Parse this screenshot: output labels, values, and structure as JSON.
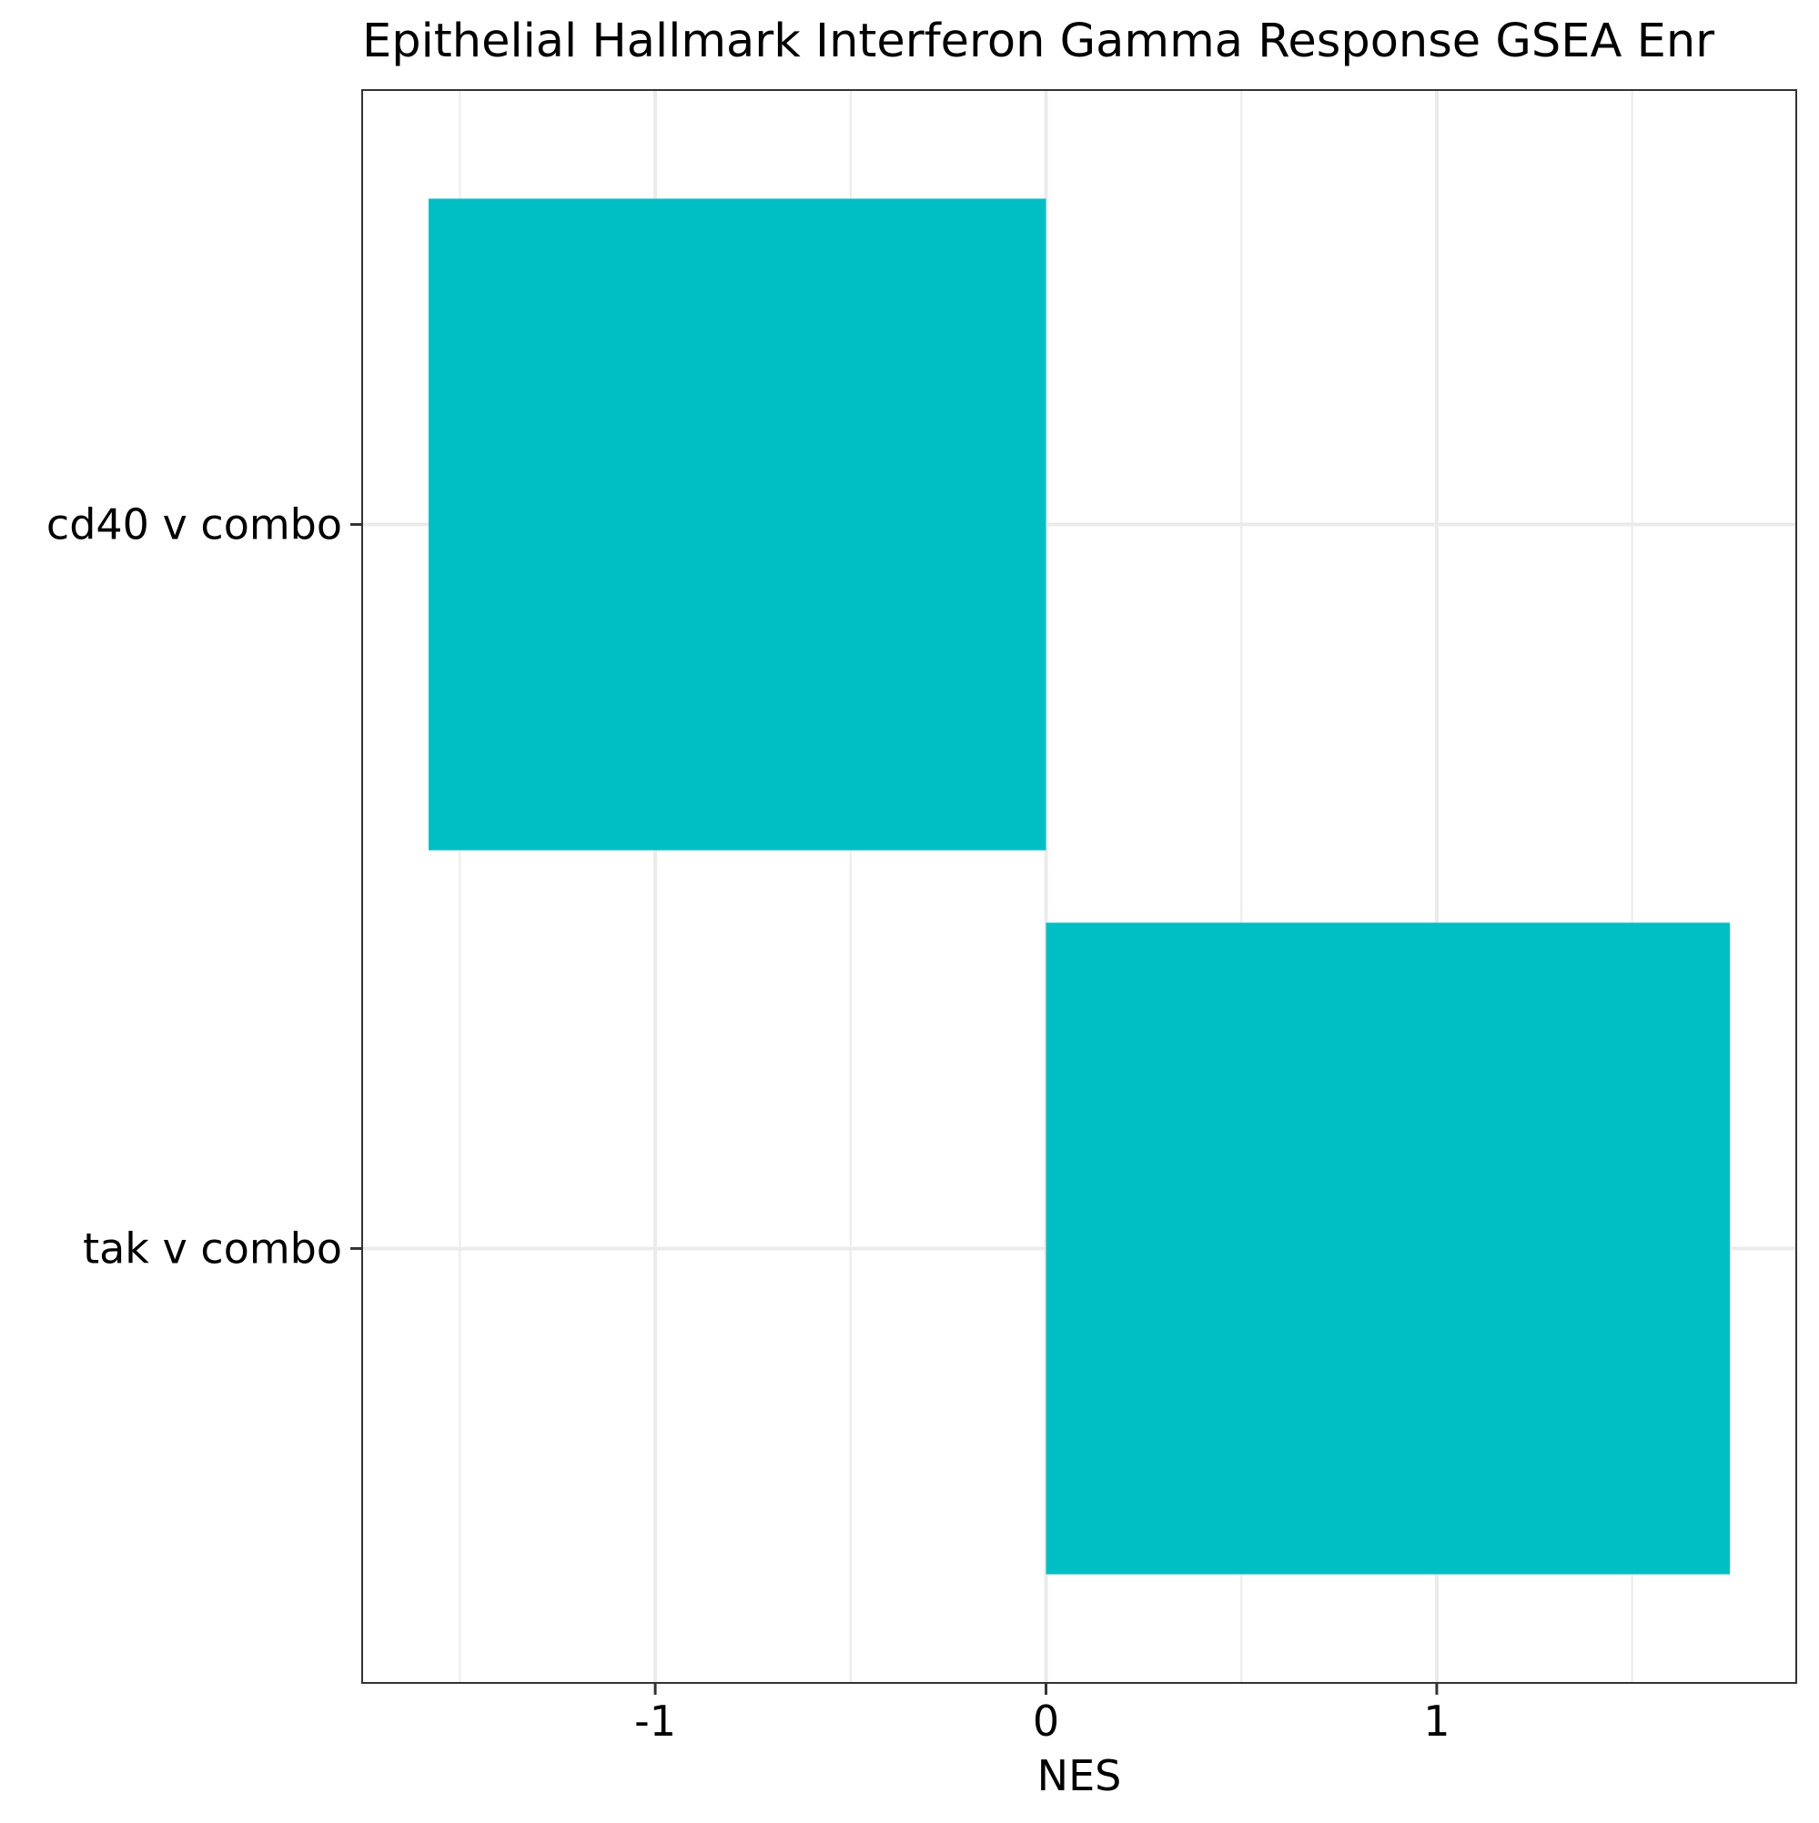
{
  "chart_data": {
    "type": "bar",
    "orientation": "horizontal",
    "title": "Epithelial Hallmark Interferon Gamma Response GSEA Enr",
    "xlabel": "NES",
    "ylabel": "",
    "categories": [
      "cd40 v combo",
      "tak v combo"
    ],
    "values": [
      -1.58,
      1.75
    ],
    "xlim": [
      -1.75,
      1.92
    ],
    "xticks": [
      -1,
      0,
      1
    ],
    "xtick_labels": [
      "-1",
      "0",
      "1"
    ],
    "grid": true,
    "legend": "none",
    "bar_color": "#00BFC4",
    "grid_color": "#EBEBEB",
    "panel_border_color": "#333333"
  }
}
